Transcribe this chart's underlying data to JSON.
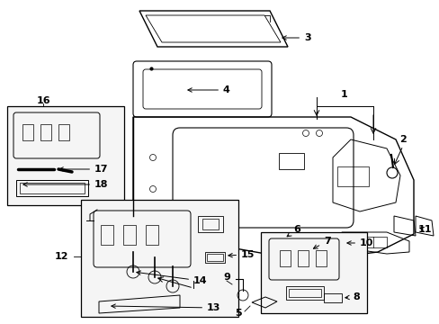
{
  "bg_color": "#ffffff",
  "line_color": "#000000",
  "figsize": [
    4.89,
    3.6
  ],
  "dpi": 100,
  "label_fontsize": 8.0
}
